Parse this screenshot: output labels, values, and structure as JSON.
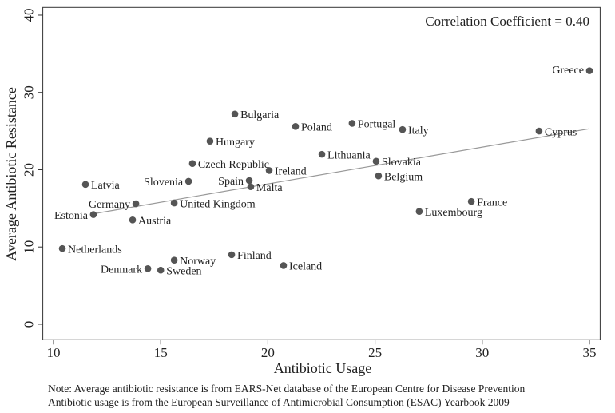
{
  "chart_data": {
    "type": "scatter",
    "annotation": "Correlation Coefficient = 0.40",
    "x_label": "Antibiotic Usage",
    "y_label": "Average Antibiotic Resistance",
    "notes": [
      "Note: Average antibiotic resistance is from EARS-Net database of the European Centre for Disease Prevention",
      "Antibiotic usage is from the European Surveillance of Antimicrobial Consumption (ESAC) Yearbook 2009"
    ],
    "labels": [
      "Greece",
      "Bulgaria",
      "Poland",
      "Portugal",
      "Italy",
      "Cyprus",
      "Hungary",
      "Lithuania",
      "Slovakia",
      "Czech Republic",
      "Ireland",
      "Belgium",
      "Latvia",
      "Slovenia",
      "Spain",
      "Malta",
      "Germany",
      "United Kingdom",
      "France",
      "Luxembourg",
      "Estonia",
      "Austria",
      "Netherlands",
      "Finland",
      "Norway",
      "Iceland",
      "Denmark",
      "Sweden"
    ],
    "x": [
      35,
      18.46,
      21.29,
      23.93,
      26.28,
      32.65,
      17.3,
      22.52,
      25.05,
      16.48,
      20.06,
      25.16,
      11.49,
      16.3,
      19.13,
      19.2,
      13.84,
      15.63,
      29.49,
      27.06,
      11.86,
      13.69,
      10.41,
      18.31,
      15.63,
      20.73,
      14.4,
      15.0
    ],
    "y": [
      32.8,
      27.2,
      25.6,
      26.0,
      25.2,
      25.0,
      23.7,
      22.0,
      21.1,
      20.8,
      19.9,
      19.2,
      18.1,
      18.5,
      18.6,
      17.8,
      15.6,
      15.7,
      15.9,
      14.6,
      14.2,
      13.5,
      9.8,
      9.0,
      8.3,
      7.6,
      7.2,
      7.0
    ],
    "fit": {
      "x": [
        11.86,
        35
      ],
      "y": [
        14.3,
        25.3
      ]
    },
    "color": "#555555",
    "fit_color": "#999999",
    "xlim": [
      9.5,
      35.5
    ],
    "ylim": [
      -2,
      41
    ],
    "xticks": [
      10,
      15,
      20,
      25,
      30,
      35
    ],
    "yticks": [
      0,
      10,
      20,
      30,
      40
    ]
  }
}
